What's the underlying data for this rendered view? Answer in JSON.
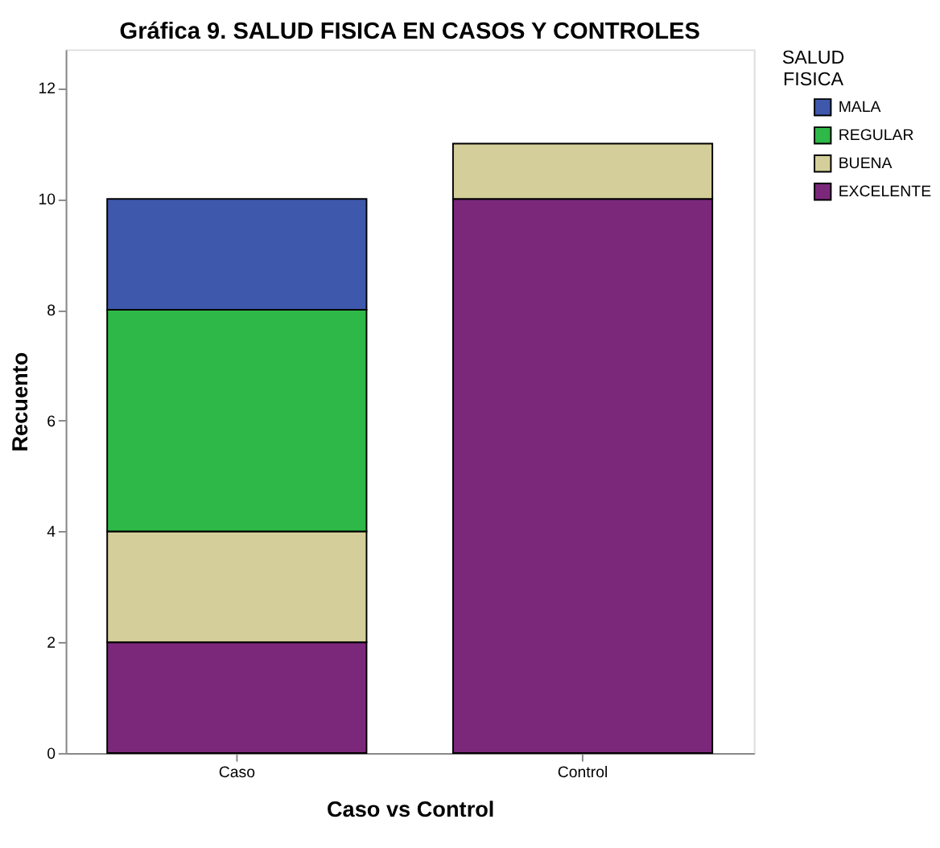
{
  "chart_data": {
    "type": "bar",
    "title": "Gráfica 9. SALUD FISICA EN CASOS Y CONTROLES",
    "xlabel": "Caso vs Control",
    "ylabel": "Recuento",
    "legend_title": "SALUD FISICA",
    "categories": [
      "Caso",
      "Control"
    ],
    "stacked": true,
    "series": [
      {
        "name": "EXCELENTE",
        "color": "#7b287b",
        "values": [
          2,
          10
        ]
      },
      {
        "name": "BUENA",
        "color": "#d4cf9a",
        "values": [
          2,
          1
        ]
      },
      {
        "name": "REGULAR",
        "color": "#2eb848",
        "values": [
          4,
          null
        ]
      },
      {
        "name": "MALA",
        "color": "#3e58ac",
        "values": [
          2,
          null
        ]
      }
    ],
    "ylim": [
      0,
      12.7
    ],
    "yticks": [
      0,
      2,
      4,
      6,
      8,
      10,
      12
    ],
    "grid": false,
    "legend": "top right"
  }
}
